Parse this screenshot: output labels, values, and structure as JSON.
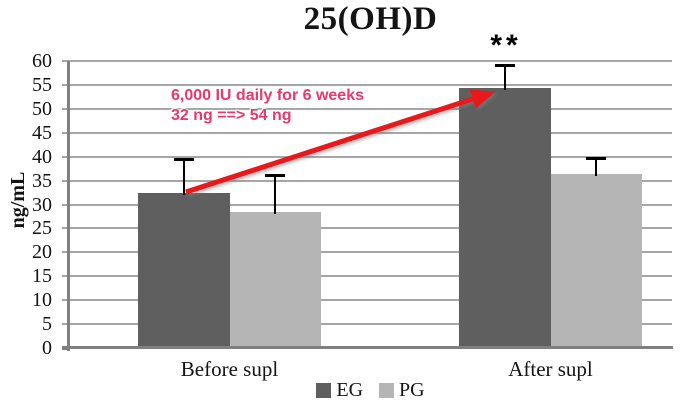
{
  "chart_data": {
    "type": "bar",
    "title": "25(OH)D",
    "ylabel": "ng/mL",
    "xlabel": "",
    "categories": [
      "Before supl",
      "After supl"
    ],
    "series": [
      {
        "name": "EG",
        "color": "#5F5F5F",
        "values": [
          32,
          54
        ],
        "error_upper": [
          7,
          4.7
        ]
      },
      {
        "name": "PG",
        "color": "#B5B5B5",
        "values": [
          28,
          36
        ],
        "error_upper": [
          7.8,
          3.3
        ]
      }
    ],
    "ylim": [
      0,
      60
    ],
    "ytick_step": 5,
    "grid": true,
    "grid_color": "#A6A6A6",
    "axis_color": "#808080",
    "legend_position": "bottom-center",
    "significance": {
      "label": "**",
      "on": "After supl, EG bar"
    },
    "annotation": {
      "lines": [
        "6,000 IU daily for 6 weeks",
        "32 ng ==> 54 ng"
      ],
      "color": "#E8386D",
      "arrow": {
        "from": "top of Before supl EG bar (32 ng)",
        "to": "top of After supl EG bar (54 ng)",
        "color": "#E8191C"
      }
    }
  }
}
